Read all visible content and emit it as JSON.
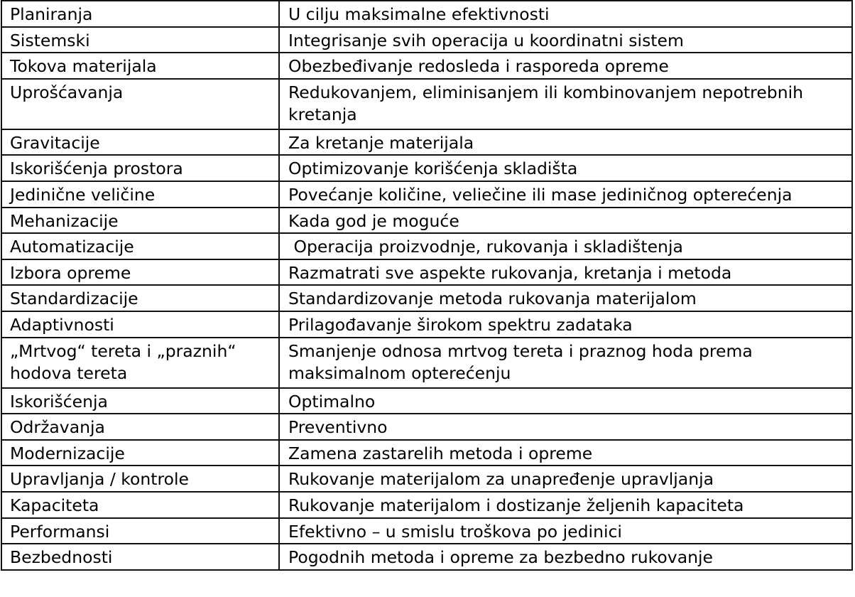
{
  "table": {
    "rows": [
      {
        "principle": "Planiranja",
        "description": "U cilju maksimalne efektivnosti"
      },
      {
        "principle": "Sistemski",
        "description": "Integrisanje svih operacija u koordinatni sistem"
      },
      {
        "principle": "Tokova materijala",
        "description": "Obezbeđivanje redosleda i rasporeda opreme"
      },
      {
        "principle": "Uprošćavanja",
        "description": "Redukovanjem, eliminisanjem ili kombinovanjem nepotrebnih kretanja"
      },
      {
        "principle": "Gravitacije",
        "description": "Za kretanje materijala"
      },
      {
        "principle": "Iskorišćenja prostora",
        "description": "Optimizovanje korišćenja skladišta"
      },
      {
        "principle": "Jedinične veličine",
        "description": "Povećanje količine, veliečine ili mase jediničnog opterećenja"
      },
      {
        "principle": "Mehanizacije",
        "description": "Kada god je moguće"
      },
      {
        "principle": "Automatizacije",
        "description": " Operacija proizvodnje, rukovanja i skladištenja"
      },
      {
        "principle": "Izbora opreme",
        "description": "Razmatrati sve aspekte rukovanja, kretanja i metoda"
      },
      {
        "principle": "Standardizacije",
        "description": "Standardizovanje metoda rukovanja materijalom"
      },
      {
        "principle": "Adaptivnosti",
        "description": "Prilagođavanje širokom spektru zadataka"
      },
      {
        "principle": "„Mrtvog“ tereta i „praznih“ hodova tereta",
        "description": "Smanjenje odnosa mrtvog tereta i praznog hoda prema maksimalnom opterećenju"
      },
      {
        "principle": "Iskorišćenja",
        "description": "Optimalno"
      },
      {
        "principle": "Održavanja",
        "description": "Preventivno"
      },
      {
        "principle": "Modernizacije",
        "description": "Zamena zastarelih metoda i opreme"
      },
      {
        "principle": "Upravljanja / kontrole",
        "description": "Rukovanje materijalom za unapređenje upravljanja"
      },
      {
        "principle": "Kapaciteta",
        "description": "Rukovanje materijalom i dostizanje željenih kapaciteta"
      },
      {
        "principle": "Performansi",
        "description": "Efektivno – u smislu troškova po jedinici"
      },
      {
        "principle": "Bezbednosti",
        "description": "Pogodnih metoda i opreme za bezbedno rukovanje"
      }
    ]
  }
}
